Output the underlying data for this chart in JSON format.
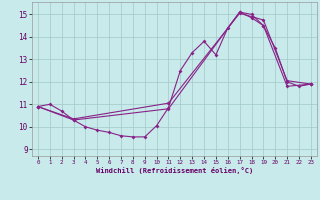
{
  "xlabel": "Windchill (Refroidissement éolien,°C)",
  "bg_color": "#c8eaea",
  "line_color": "#882288",
  "grid_color": "#a0c8c8",
  "xlim": [
    -0.5,
    23.5
  ],
  "ylim": [
    8.7,
    15.55
  ],
  "xticks": [
    0,
    1,
    2,
    3,
    4,
    5,
    6,
    7,
    8,
    9,
    10,
    11,
    12,
    13,
    14,
    15,
    16,
    17,
    18,
    19,
    20,
    21,
    22,
    23
  ],
  "yticks": [
    9,
    10,
    11,
    12,
    13,
    14,
    15
  ],
  "line1_x": [
    0,
    1,
    2,
    3,
    4,
    5,
    6,
    7,
    8,
    9,
    10,
    11,
    12,
    13,
    14,
    15,
    16,
    17,
    18,
    19,
    20,
    21,
    22,
    23
  ],
  "line1_y": [
    10.9,
    11.0,
    10.7,
    10.3,
    10.0,
    9.85,
    9.75,
    9.6,
    9.55,
    9.55,
    10.05,
    10.85,
    12.5,
    13.3,
    13.8,
    13.2,
    14.4,
    15.1,
    15.0,
    14.5,
    13.5,
    12.0,
    11.8,
    11.9
  ],
  "line2_x": [
    0,
    3,
    11,
    17,
    18,
    19,
    21,
    23
  ],
  "line2_y": [
    10.9,
    10.3,
    10.8,
    15.1,
    14.85,
    14.5,
    11.8,
    11.9
  ],
  "line3_x": [
    0,
    3,
    11,
    17,
    18,
    19,
    21,
    23
  ],
  "line3_y": [
    10.9,
    10.35,
    11.05,
    15.05,
    14.9,
    14.75,
    12.05,
    11.9
  ]
}
